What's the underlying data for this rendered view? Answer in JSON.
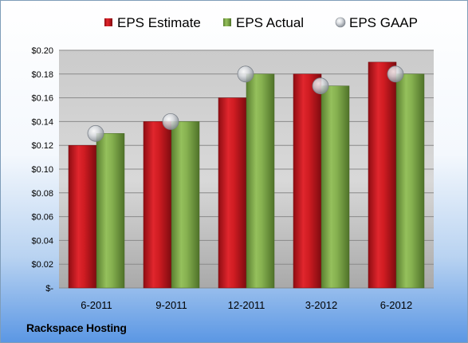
{
  "chart_data": {
    "type": "bar",
    "categories": [
      "6-2011",
      "9-2011",
      "12-2011",
      "3-2012",
      "6-2012"
    ],
    "series": [
      {
        "name": "EPS Estimate",
        "kind": "bar",
        "color": "#c0141c",
        "values": [
          0.12,
          0.14,
          0.16,
          0.18,
          0.19
        ]
      },
      {
        "name": "EPS Actual",
        "kind": "bar",
        "color": "#7ea84a",
        "values": [
          0.13,
          0.14,
          0.18,
          0.17,
          0.18
        ]
      },
      {
        "name": "EPS GAAP",
        "kind": "marker",
        "color": "#c8ccd2",
        "values": [
          0.13,
          0.14,
          0.18,
          0.17,
          0.18
        ]
      }
    ],
    "y_ticks": [
      "$-",
      "$0.02",
      "$0.04",
      "$0.06",
      "$0.08",
      "$0.10",
      "$0.12",
      "$0.14",
      "$0.16",
      "$0.18",
      "$0.20"
    ],
    "ylim": [
      0,
      0.2
    ],
    "grid": true,
    "legend_position": "top"
  },
  "footer": {
    "company": "Rackspace Hosting"
  }
}
